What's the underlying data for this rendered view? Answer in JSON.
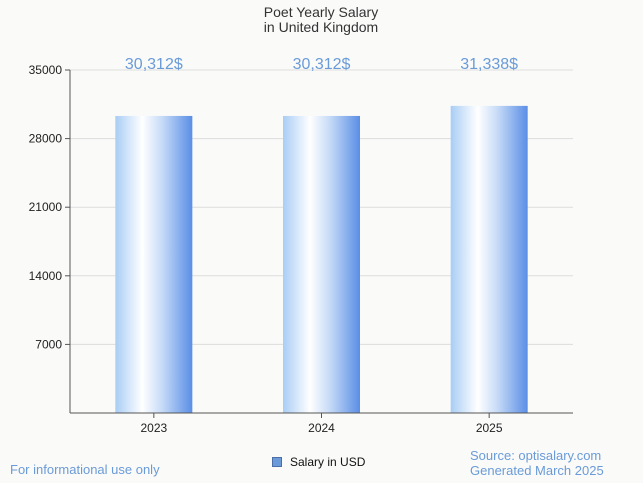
{
  "chart_data": {
    "type": "bar",
    "title_lines": [
      "Poet Yearly Salary",
      "in United Kingdom"
    ],
    "categories": [
      "2023",
      "2024",
      "2025"
    ],
    "series": [
      {
        "name": "Salary in USD",
        "values": [
          30312,
          30312,
          31338
        ]
      }
    ],
    "data_labels": [
      "30,312$",
      "30,312$",
      "31,338$"
    ],
    "yticks": [
      7000,
      14000,
      21000,
      28000,
      35000
    ],
    "ylim": [
      0,
      35000
    ],
    "grid": true,
    "legend_position": "bottom",
    "bar_color": "#6a9bd8"
  },
  "footer": {
    "disclaimer": "For informational use only",
    "source": "Source: optisalary.com",
    "generated": "Generated March 2025"
  },
  "legend": {
    "label": "Salary in USD"
  }
}
